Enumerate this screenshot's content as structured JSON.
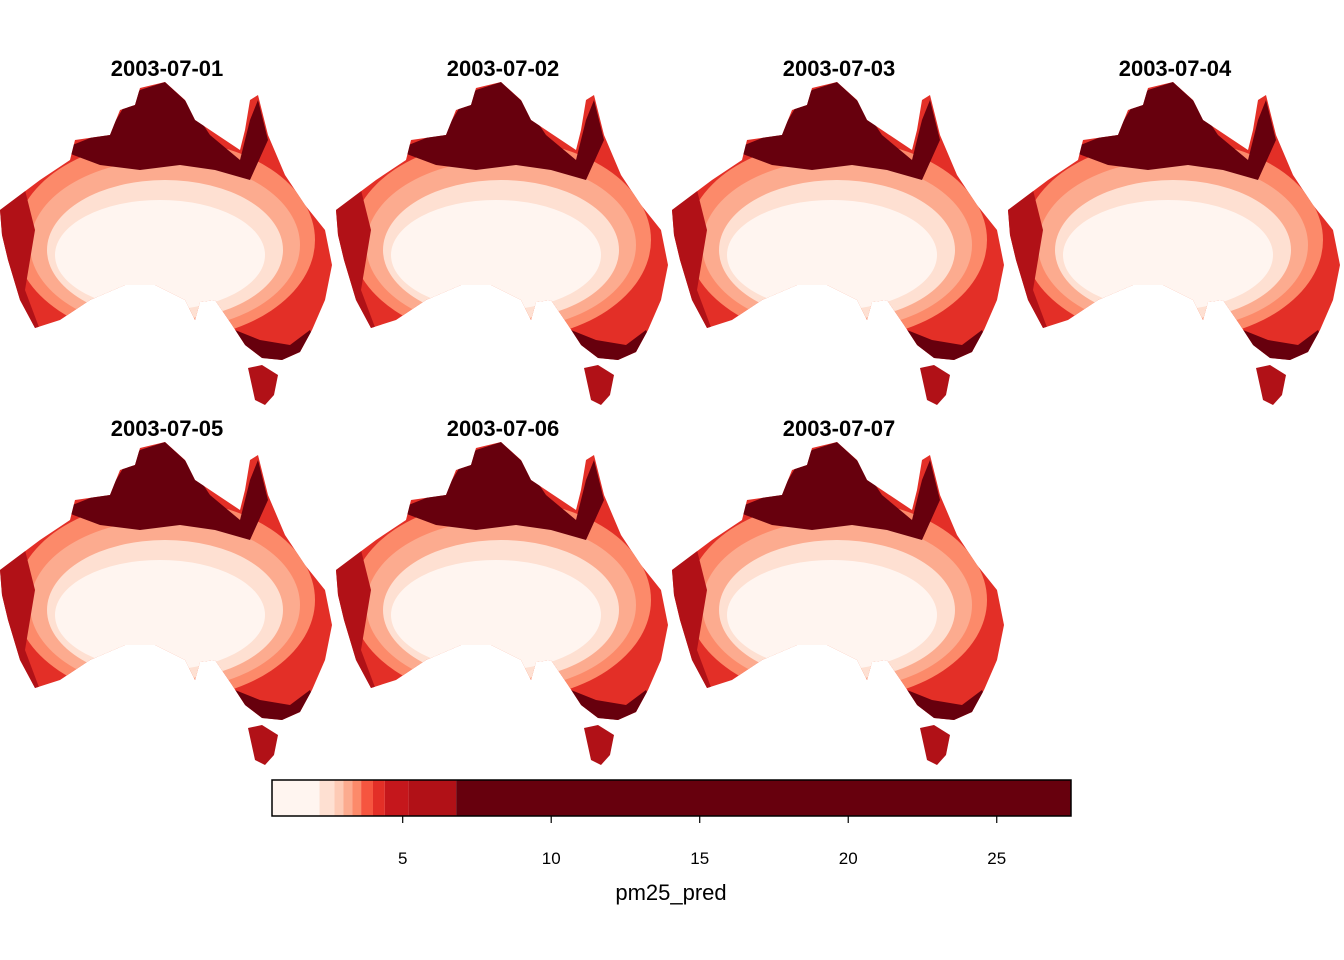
{
  "panels": [
    {
      "date": "2003-07-01"
    },
    {
      "date": "2003-07-02"
    },
    {
      "date": "2003-07-03"
    },
    {
      "date": "2003-07-04"
    },
    {
      "date": "2003-07-05"
    },
    {
      "date": "2003-07-06"
    },
    {
      "date": "2003-07-07"
    }
  ],
  "legend": {
    "title": "pm25_pred",
    "range": [
      0.6,
      27.5
    ],
    "ticks": [
      5,
      10,
      15,
      20,
      25
    ],
    "breaks": [
      {
        "from": 0.6,
        "to": 2.2,
        "color": "#fff5f0"
      },
      {
        "from": 2.2,
        "to": 2.7,
        "color": "#fee0d2"
      },
      {
        "from": 2.7,
        "to": 3.0,
        "color": "#fdcab5"
      },
      {
        "from": 3.0,
        "to": 3.3,
        "color": "#fcab8f"
      },
      {
        "from": 3.3,
        "to": 3.6,
        "color": "#fc8a6a"
      },
      {
        "from": 3.6,
        "to": 4.0,
        "color": "#f6553f"
      },
      {
        "from": 4.0,
        "to": 4.4,
        "color": "#e32f27"
      },
      {
        "from": 4.4,
        "to": 5.2,
        "color": "#c5171c"
      },
      {
        "from": 5.2,
        "to": 6.8,
        "color": "#b11117"
      },
      {
        "from": 6.8,
        "to": 27.5,
        "color": "#67000d"
      }
    ]
  }
}
